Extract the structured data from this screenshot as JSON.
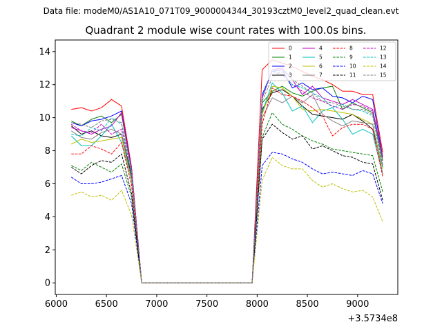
{
  "figure": {
    "suptitle": "Data file: modeM0/AS1A10_071T09_9000004344_30193cztM0_level2_quad_clean.evt",
    "offset_label": "+3.5734e8"
  },
  "chart_data": {
    "type": "line",
    "title": "Quadrant 2 module wise count rates with 100.0s bins.",
    "xlabel": "",
    "ylabel": "",
    "xlim": [
      5990,
      9400
    ],
    "ylim": [
      -0.7,
      14.7
    ],
    "x_ticks": [
      6000,
      6500,
      7000,
      7500,
      8000,
      8500,
      9000
    ],
    "y_ticks": [
      0,
      2,
      4,
      6,
      8,
      10,
      12,
      14
    ],
    "grid": false,
    "legend_position": "top-right",
    "x": [
      6150,
      6250,
      6350,
      6450,
      6550,
      6650,
      6750,
      6850,
      6950,
      7050,
      7150,
      7250,
      7350,
      7450,
      7550,
      7650,
      7750,
      7850,
      7950,
      8050,
      8150,
      8250,
      8350,
      8450,
      8550,
      8650,
      8750,
      8850,
      8950,
      9050,
      9150,
      9250
    ],
    "series": [
      {
        "name": "0",
        "color": "#ff0000",
        "dash": "solid",
        "values": [
          10.5,
          10.6,
          10.4,
          10.6,
          11.1,
          10.7,
          7.0,
          0,
          0,
          0,
          0,
          0,
          0,
          0,
          0,
          0,
          0,
          0,
          0,
          12.9,
          13.5,
          13.3,
          13.1,
          12.8,
          12.5,
          12.3,
          12.0,
          11.6,
          11.6,
          11.4,
          11.4,
          7.9
        ]
      },
      {
        "name": "1",
        "color": "#008000",
        "dash": "solid",
        "values": [
          9.8,
          9.5,
          9.9,
          10.1,
          9.7,
          10.2,
          6.8,
          0,
          0,
          0,
          0,
          0,
          0,
          0,
          0,
          0,
          0,
          0,
          0,
          10.9,
          11.6,
          11.9,
          11.5,
          11.3,
          11.6,
          11.8,
          11.9,
          10.5,
          10.9,
          10.6,
          10.3,
          7.4
        ]
      },
      {
        "name": "2",
        "color": "#0000ff",
        "dash": "solid",
        "values": [
          9.7,
          9.5,
          9.8,
          9.9,
          10.1,
          10.4,
          6.9,
          0,
          0,
          0,
          0,
          0,
          0,
          0,
          0,
          0,
          0,
          0,
          0,
          11.4,
          12.8,
          12.9,
          11.8,
          12.1,
          11.7,
          11.8,
          11.3,
          11.2,
          10.9,
          11.3,
          11.1,
          7.6
        ]
      },
      {
        "name": "3",
        "color": "#000000",
        "dash": "solid",
        "values": [
          9.5,
          9.0,
          9.2,
          8.9,
          8.8,
          9.0,
          6.5,
          0,
          0,
          0,
          0,
          0,
          0,
          0,
          0,
          0,
          0,
          0,
          0,
          10.5,
          11.5,
          11.7,
          11.3,
          10.7,
          10.2,
          10.1,
          10.0,
          9.9,
          10.2,
          9.8,
          9.3,
          7.0
        ]
      },
      {
        "name": "4",
        "color": "#bf00bf",
        "dash": "solid",
        "values": [
          9.4,
          9.2,
          9.0,
          9.3,
          9.5,
          10.3,
          6.9,
          0,
          0,
          0,
          0,
          0,
          0,
          0,
          0,
          0,
          0,
          0,
          0,
          11.2,
          12.9,
          13.0,
          12.3,
          11.4,
          11.9,
          11.2,
          11.0,
          10.8,
          11.1,
          10.8,
          10.5,
          7.6
        ]
      },
      {
        "name": "5",
        "color": "#00bfbf",
        "dash": "solid",
        "values": [
          8.9,
          8.3,
          8.3,
          8.9,
          9.6,
          8.5,
          6.2,
          0,
          0,
          0,
          0,
          0,
          0,
          0,
          0,
          0,
          0,
          0,
          0,
          10.3,
          12.1,
          11.5,
          10.4,
          10.7,
          9.7,
          10.4,
          10.6,
          9.9,
          9.0,
          9.3,
          9.0,
          6.6
        ]
      },
      {
        "name": "6",
        "color": "#bfbf00",
        "dash": "solid",
        "values": [
          8.4,
          8.7,
          8.5,
          8.6,
          8.7,
          8.8,
          6.2,
          0,
          0,
          0,
          0,
          0,
          0,
          0,
          0,
          0,
          0,
          0,
          0,
          10.2,
          11.9,
          11.8,
          11.3,
          10.5,
          10.4,
          10.5,
          10.4,
          10.3,
          10.2,
          9.9,
          9.6,
          6.9
        ]
      },
      {
        "name": "7",
        "color": "#808080",
        "dash": "solid",
        "values": [
          9.2,
          8.8,
          8.7,
          9.1,
          9.3,
          9.0,
          6.3,
          0,
          0,
          0,
          0,
          0,
          0,
          0,
          0,
          0,
          0,
          0,
          0,
          10.0,
          11.2,
          10.9,
          11.3,
          10.9,
          11.4,
          10.2,
          9.8,
          9.5,
          9.8,
          9.7,
          9.6,
          6.6
        ]
      },
      {
        "name": "8",
        "color": "#ff0000",
        "dash": "dashed",
        "values": [
          7.8,
          7.8,
          8.3,
          8.1,
          7.8,
          8.5,
          5.9,
          0,
          0,
          0,
          0,
          0,
          0,
          0,
          0,
          0,
          0,
          0,
          0,
          9.6,
          11.8,
          11.4,
          11.3,
          11.0,
          10.6,
          10.1,
          8.9,
          9.4,
          9.6,
          9.6,
          9.3,
          6.4
        ]
      },
      {
        "name": "9",
        "color": "#008000",
        "dash": "dashed",
        "values": [
          7.1,
          6.8,
          7.3,
          7.0,
          6.7,
          7.2,
          5.2,
          0,
          0,
          0,
          0,
          0,
          0,
          0,
          0,
          0,
          0,
          0,
          0,
          8.8,
          10.3,
          9.6,
          9.3,
          8.9,
          8.6,
          8.4,
          8.1,
          8.0,
          7.9,
          7.8,
          7.7,
          5.5
        ]
      },
      {
        "name": "10",
        "color": "#0000ff",
        "dash": "dashed",
        "values": [
          6.4,
          6.0,
          6.0,
          6.1,
          6.3,
          6.5,
          4.8,
          0,
          0,
          0,
          0,
          0,
          0,
          0,
          0,
          0,
          0,
          0,
          0,
          7.1,
          7.9,
          7.8,
          7.5,
          7.3,
          6.9,
          6.6,
          6.7,
          6.6,
          6.5,
          6.8,
          6.6,
          4.8
        ]
      },
      {
        "name": "11",
        "color": "#000000",
        "dash": "dashed",
        "values": [
          7.0,
          6.6,
          7.1,
          7.4,
          7.3,
          7.8,
          5.4,
          0,
          0,
          0,
          0,
          0,
          0,
          0,
          0,
          0,
          0,
          0,
          0,
          8.7,
          9.6,
          9.1,
          8.7,
          8.9,
          8.1,
          8.3,
          8.0,
          7.7,
          7.6,
          7.3,
          7.2,
          5.0
        ]
      },
      {
        "name": "12",
        "color": "#bf00bf",
        "dash": "dashed",
        "values": [
          9.6,
          9.2,
          9.1,
          9.6,
          9.0,
          9.3,
          6.7,
          0,
          0,
          0,
          0,
          0,
          0,
          0,
          0,
          0,
          0,
          0,
          0,
          11.2,
          12.8,
          12.6,
          12.0,
          11.6,
          11.2,
          11.0,
          10.7,
          10.5,
          10.8,
          10.7,
          10.4,
          7.1
        ]
      },
      {
        "name": "13",
        "color": "#00bfbf",
        "dash": "dashed",
        "values": [
          9.0,
          8.9,
          9.4,
          9.2,
          10.0,
          9.6,
          6.6,
          0,
          0,
          0,
          0,
          0,
          0,
          0,
          0,
          0,
          0,
          0,
          0,
          11.3,
          12.8,
          12.7,
          12.0,
          11.8,
          11.5,
          11.2,
          10.6,
          10.8,
          10.5,
          10.4,
          10.1,
          7.0
        ]
      },
      {
        "name": "14",
        "color": "#bfbf00",
        "dash": "dashed",
        "values": [
          5.3,
          5.5,
          5.2,
          5.3,
          5.0,
          5.6,
          4.1,
          0,
          0,
          0,
          0,
          0,
          0,
          0,
          0,
          0,
          0,
          0,
          0,
          6.2,
          7.6,
          7.1,
          6.9,
          6.9,
          6.2,
          5.8,
          6.0,
          5.7,
          5.5,
          5.6,
          5.2,
          3.7
        ]
      },
      {
        "name": "15",
        "color": "#808080",
        "dash": "dashed",
        "values": [
          9.7,
          9.6,
          9.4,
          9.8,
          9.9,
          9.7,
          6.8,
          0,
          0,
          0,
          0,
          0,
          0,
          0,
          0,
          0,
          0,
          0,
          0,
          11.0,
          12.4,
          12.9,
          12.3,
          11.9,
          11.5,
          11.0,
          10.9,
          10.7,
          10.5,
          10.5,
          10.2,
          7.3
        ]
      }
    ]
  }
}
